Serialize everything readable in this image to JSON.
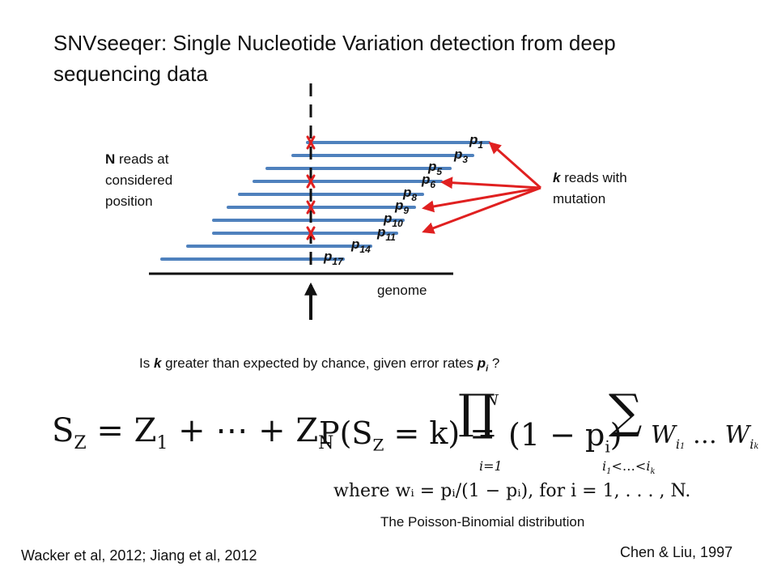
{
  "title_line1": "SNVseeqer: Single Nucleotide Variation detection from deep",
  "title_line2": "sequencing data",
  "n_reads": {
    "bold": "N",
    "line1_rest": " reads at",
    "line2": "considered",
    "line3": "position"
  },
  "k_reads": {
    "bold": "k",
    "line1_rest": " reads with",
    "line2": "mutation"
  },
  "genome_label": "genome",
  "read_labels": [
    {
      "base": "p",
      "sub": "1"
    },
    {
      "base": "p",
      "sub": "3"
    },
    {
      "base": "p",
      "sub": "5"
    },
    {
      "base": "p",
      "sub": "6"
    },
    {
      "base": "p",
      "sub": "8"
    },
    {
      "base": "p",
      "sub": "9"
    },
    {
      "base": "p",
      "sub": "10"
    },
    {
      "base": "p",
      "sub": "11"
    },
    {
      "base": "p",
      "sub": "14"
    },
    {
      "base": "p",
      "sub": "17"
    }
  ],
  "question": {
    "pre": "Is ",
    "k": "k",
    "mid": " greater than expected by chance, given error rates ",
    "p": "p",
    "sub": "i",
    "post": " ?"
  },
  "formula_left": {
    "S": "S",
    "Z": "Z",
    "eq": "=",
    "Z1": "Z",
    "sub1": "1",
    "plus_dots": "+ ⋯ +",
    "ZN": "Z",
    "subN": "N"
  },
  "formula_right": {
    "P": "P(S",
    "Z": "Z",
    "eqk": "= k) =",
    "N": "N",
    "i1": "i=1",
    "one_minus": "(1 − p",
    "i": "i",
    "close": ")",
    "W": "W",
    "wi1": "i",
    "w1": "1",
    "dots": "…",
    "W2": "W",
    "wik": "i",
    "wk": "k",
    "idx": "i",
    "idx1": "1",
    "idxmid": "<…<",
    "idxk": "i",
    "idxk_sub": "k"
  },
  "where_line": "where wᵢ = pᵢ/(1 − pᵢ),  for i = 1, . . . , N.",
  "distribution_name": "The Poisson-Binomial distribution",
  "citation_left": "Wacker et al, 2012; Jiang et al, 2012",
  "citation_right": "Chen & Liu, 1997",
  "colors": {
    "read": "#4f81bd",
    "mutation": "#e02020",
    "axis": "#111111"
  }
}
